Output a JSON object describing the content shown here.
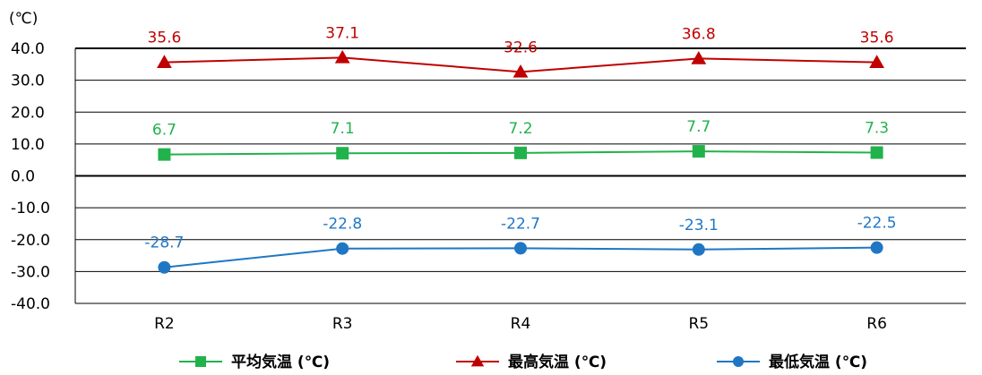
{
  "chart_data": {
    "type": "line",
    "unit_label": "(℃)",
    "categories": [
      "R2",
      "R3",
      "R4",
      "R5",
      "R6"
    ],
    "ylim": [
      -40,
      40
    ],
    "yticks": [
      "40.0",
      "30.0",
      "20.0",
      "10.0",
      "0.0",
      "-10.0",
      "-20.0",
      "-30.0",
      "-40.0"
    ],
    "grid": true,
    "legend_position": "bottom",
    "series": [
      {
        "name": "平均気温 (℃)",
        "marker": "square",
        "color": "#22b24c",
        "values": [
          6.7,
          7.1,
          7.2,
          7.7,
          7.3
        ],
        "labels": [
          "6.7",
          "7.1",
          "7.2",
          "7.7",
          "7.3"
        ]
      },
      {
        "name": "最高気温 (℃)",
        "marker": "triangle",
        "color": "#c00000",
        "values": [
          35.6,
          37.1,
          32.6,
          36.8,
          35.6
        ],
        "labels": [
          "35.6",
          "37.1",
          "32.6",
          "36.8",
          "35.6"
        ]
      },
      {
        "name": "最低気温 (℃)",
        "marker": "circle",
        "color": "#1f77c4",
        "values": [
          -28.7,
          -22.8,
          -22.7,
          -23.1,
          -22.5
        ],
        "labels": [
          "-28.7",
          "-22.8",
          "-22.7",
          "-23.1",
          "-22.5"
        ]
      }
    ]
  }
}
